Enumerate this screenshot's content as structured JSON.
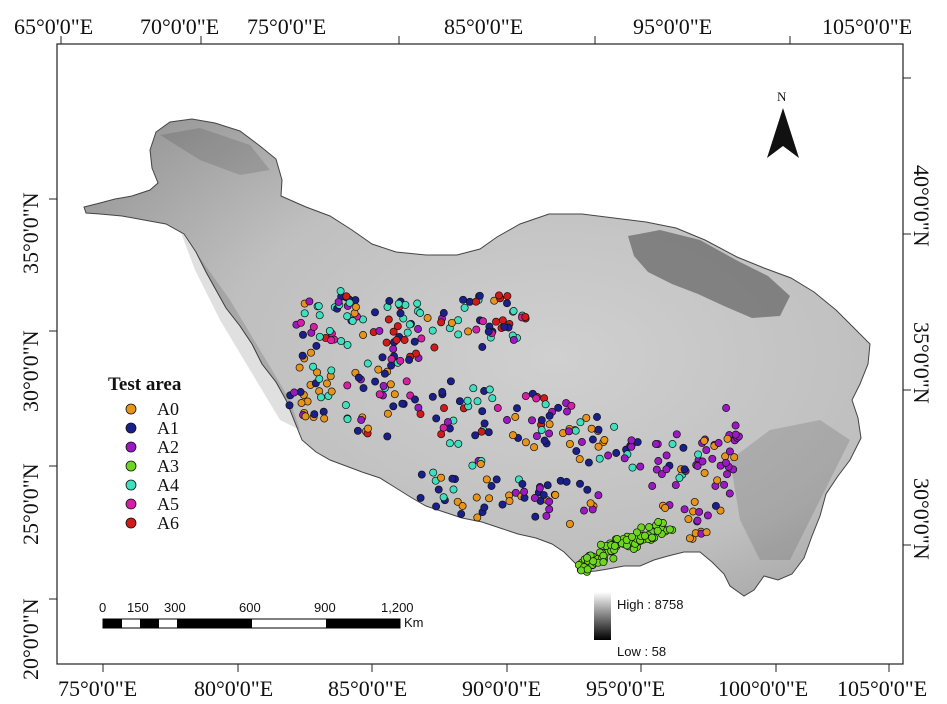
{
  "top_labels": [
    "65°0'0\"E",
    "70°0'0\"E",
    "75°0'0\"E",
    "85°0'0\"E",
    "95°0'0\"E",
    "105°0'0\"E"
  ],
  "bottom_labels": [
    "75°0'0\"E",
    "80°0'0\"E",
    "85°0'0\"E",
    "90°0'0\"E",
    "95°0'0\"E",
    "100°0'0\"E",
    "105°0'0\"E"
  ],
  "left_labels": [
    "35°0'0\"N",
    "30°0'0\"N",
    "25°0'0\"N",
    "20°0'0\"N"
  ],
  "right_labels": [
    "40°0'0\"N",
    "35°0'0\"N",
    "30°0'0\"N"
  ],
  "north_label": "N",
  "legend": {
    "title": "Test area",
    "items": [
      {
        "label": "A0",
        "color": "#e8941a"
      },
      {
        "label": "A1",
        "color": "#1a1f8c"
      },
      {
        "label": "A2",
        "color": "#9b19c2"
      },
      {
        "label": "A3",
        "color": "#6fd61f"
      },
      {
        "label": "A4",
        "color": "#3fe0c0"
      },
      {
        "label": "A5",
        "color": "#d61ea6"
      },
      {
        "label": "A6",
        "color": "#d21a1a"
      }
    ]
  },
  "scale_bar": {
    "ticks": [
      "0",
      "150",
      "300",
      "600",
      "900",
      "1,200"
    ],
    "unit": "Km"
  },
  "elevation": {
    "high": "High : 8758",
    "low": "Low : 58"
  }
}
